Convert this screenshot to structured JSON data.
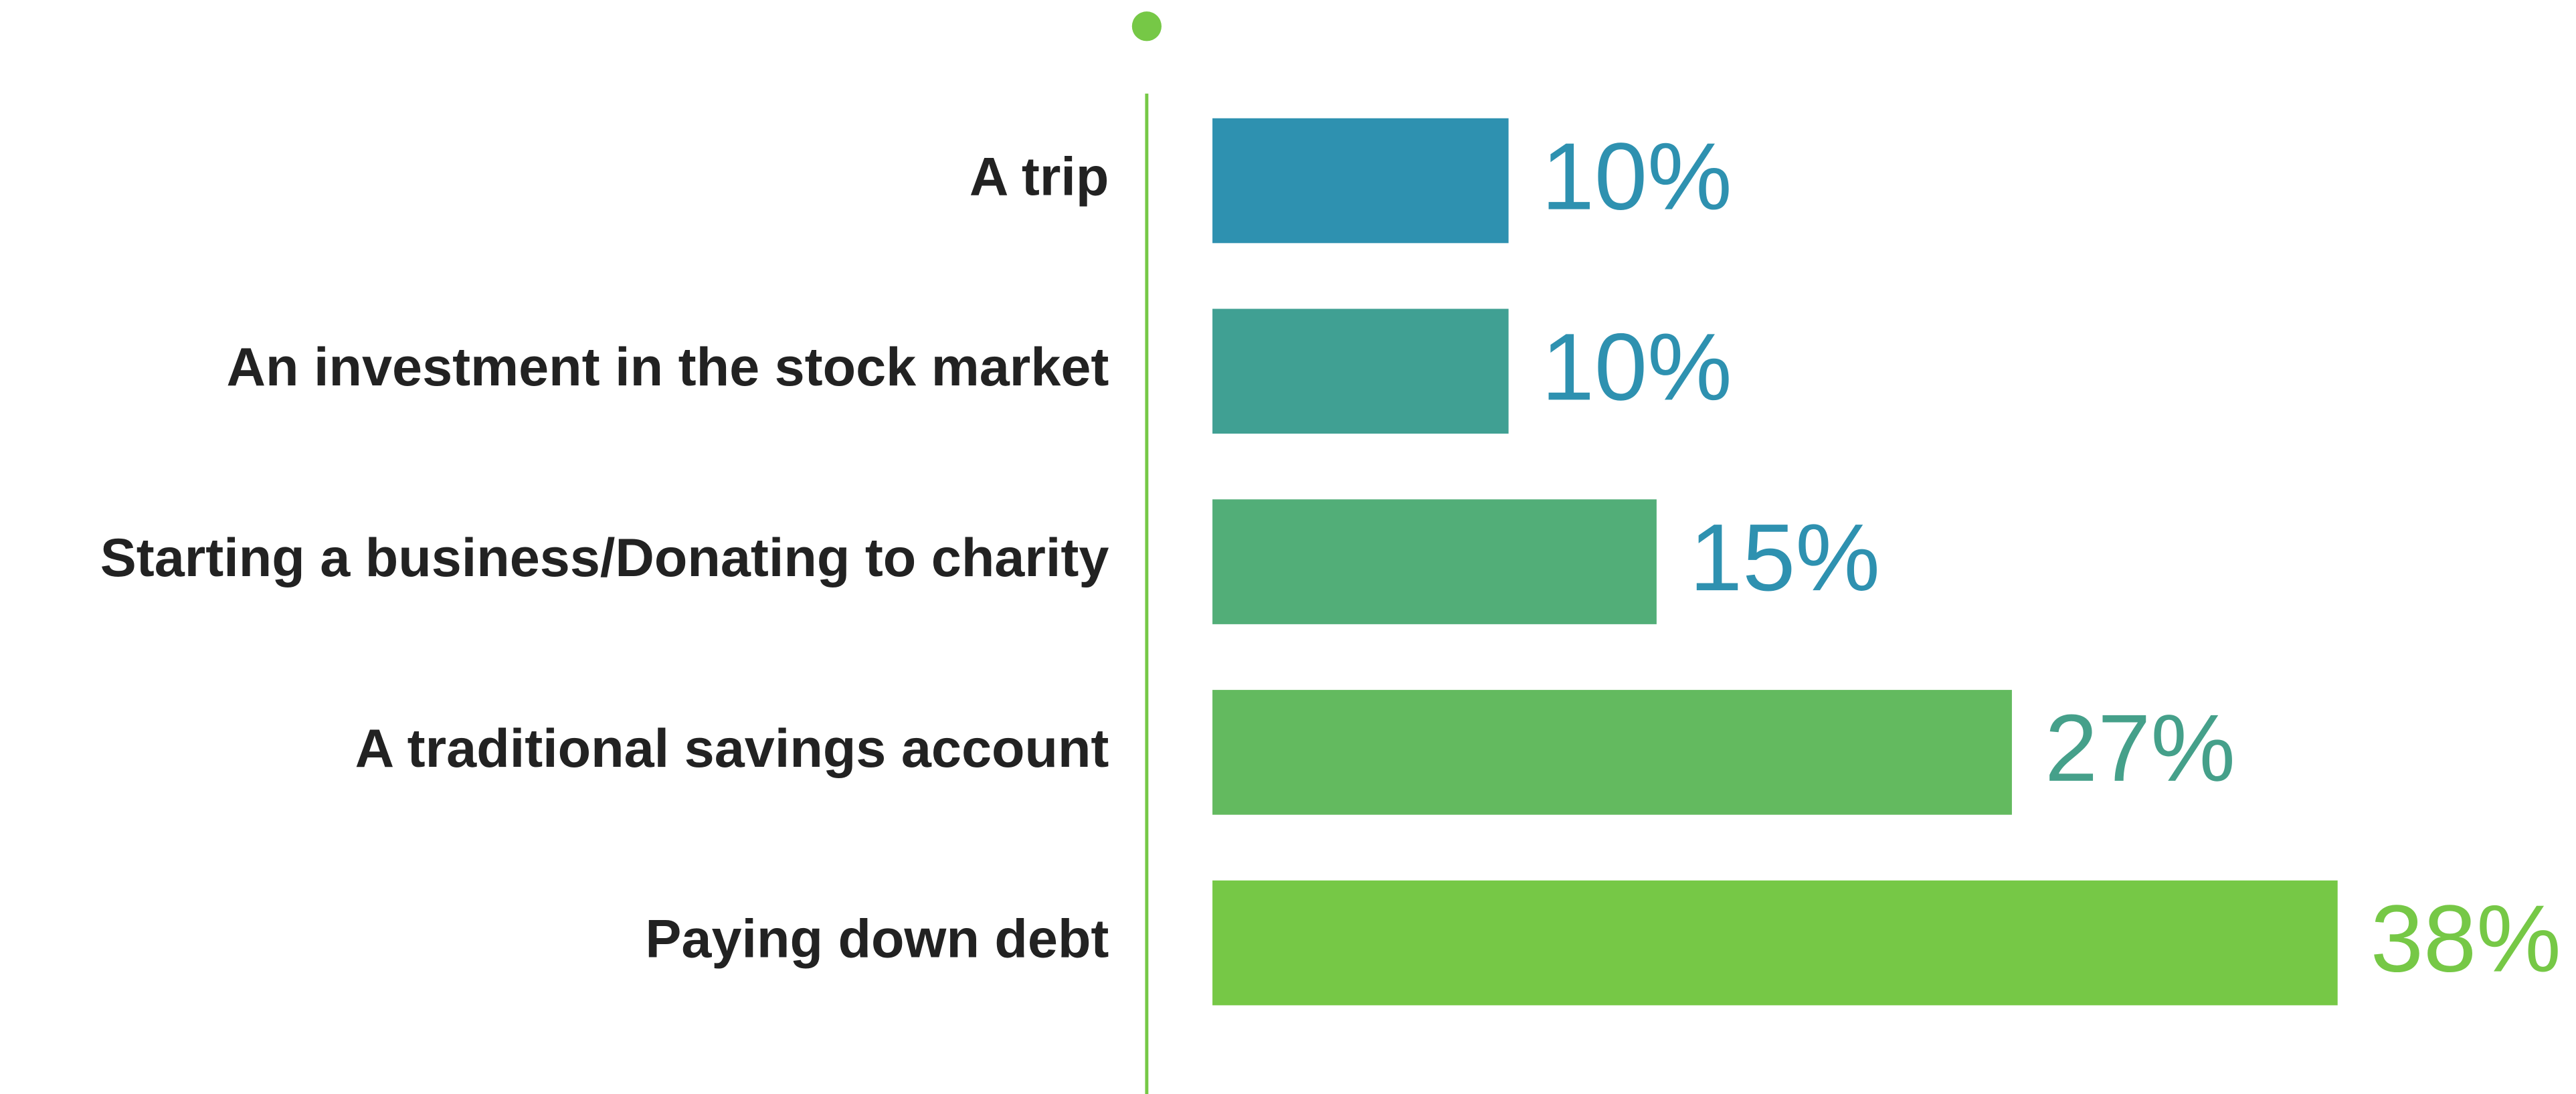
{
  "chart_data": {
    "type": "hbar",
    "categories": [
      "A trip",
      "An investment in the stock market",
      "Starting a business/Donating to charity",
      "A traditional savings account",
      "Paying down debt"
    ],
    "values": [
      10,
      10,
      15,
      27,
      38
    ],
    "value_labels": [
      "10%",
      "10%",
      "15%",
      "27%",
      "38%"
    ],
    "colors": [
      "#2e91b0",
      "#40a093",
      "#52ae78",
      "#63ba5f",
      "#76c846"
    ],
    "label_colors": [
      "#2e91b0",
      "#2e91b0",
      "#2e91b0",
      "#45a08a",
      "#76c846"
    ]
  }
}
